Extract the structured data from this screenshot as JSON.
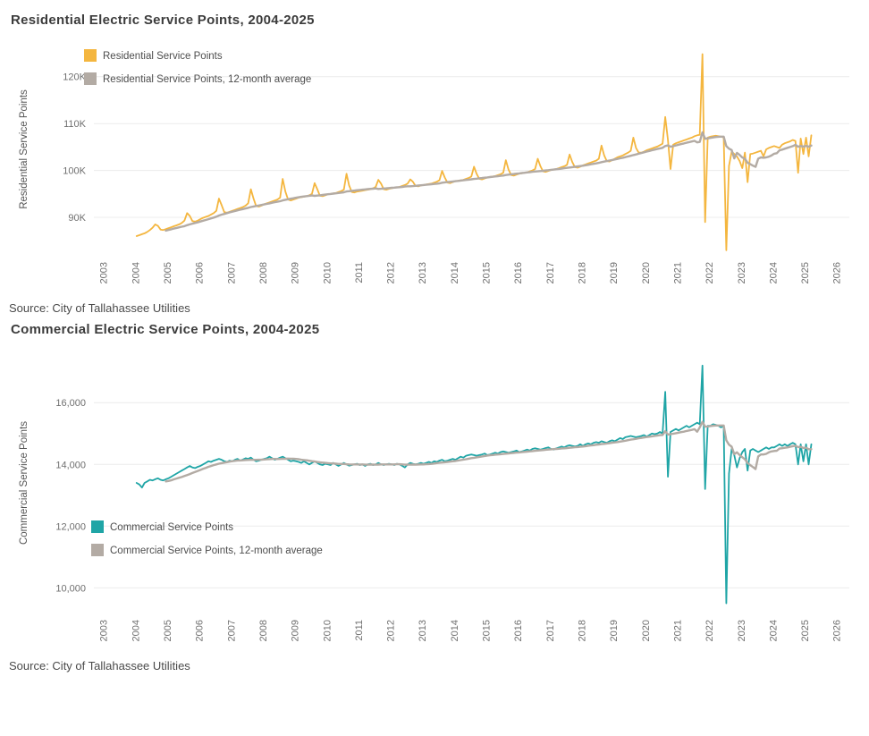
{
  "page": {
    "background": "#ffffff"
  },
  "chart_data": [
    {
      "type": "line",
      "title": "Residential Electric Service Points, 2004-2025",
      "source": "Source: City of Tallahassee Utilities",
      "ylabel": "Residential Service Points",
      "legend": [
        "Residential Service Points",
        "Residential Service Points, 12-month average"
      ],
      "legend_position": "top-left",
      "grid": "horizontal",
      "colors": {
        "series": "#F4B63F",
        "average": "#B3ABA4"
      },
      "xlim": [
        2002.7,
        2026.4
      ],
      "ylim": [
        82000,
        127000
      ],
      "x_ticks": [
        2003,
        2004,
        2005,
        2006,
        2007,
        2008,
        2009,
        2010,
        2011,
        2012,
        2013,
        2014,
        2015,
        2016,
        2017,
        2018,
        2019,
        2020,
        2021,
        2022,
        2023,
        2024,
        2025,
        2026
      ],
      "y_ticks": [
        {
          "value": 90000,
          "label": "90K"
        },
        {
          "value": 100000,
          "label": "100K"
        },
        {
          "value": 110000,
          "label": "110K"
        },
        {
          "value": 120000,
          "label": "120K"
        }
      ],
      "x_start_year": 2004,
      "frequency": "monthly",
      "series": [
        {
          "name": "Residential Service Points",
          "values": [
            86000,
            86200,
            86400,
            86600,
            86900,
            87300,
            87800,
            88500,
            88200,
            87400,
            87300,
            87500,
            87700,
            87900,
            88100,
            88300,
            88500,
            88800,
            89300,
            90900,
            90300,
            89200,
            89100,
            89300,
            89600,
            89900,
            90100,
            90300,
            90600,
            90900,
            91400,
            94000,
            92600,
            91100,
            91000,
            91200,
            91400,
            91600,
            91800,
            92000,
            92200,
            92500,
            93000,
            96000,
            94000,
            92400,
            92300,
            92500,
            92800,
            93000,
            93200,
            93400,
            93600,
            93800,
            94200,
            98200,
            95500,
            93800,
            93600,
            93800,
            94000,
            94200,
            94300,
            94400,
            94500,
            94700,
            95000,
            97300,
            96000,
            94600,
            94500,
            94700,
            94900,
            95000,
            95100,
            95200,
            95400,
            95600,
            95900,
            99300,
            96800,
            95400,
            95300,
            95500,
            95600,
            95700,
            95800,
            95900,
            96000,
            96200,
            96500,
            98000,
            97200,
            96000,
            95900,
            96100,
            96200,
            96300,
            96400,
            96500,
            96700,
            96900,
            97200,
            98100,
            97600,
            96700,
            96600,
            96800,
            96900,
            97000,
            97100,
            97200,
            97400,
            97600,
            97900,
            99900,
            98500,
            97400,
            97300,
            97500,
            97700,
            97800,
            97900,
            98000,
            98200,
            98400,
            98700,
            100800,
            99300,
            98200,
            98100,
            98300,
            98500,
            98600,
            98700,
            98800,
            99000,
            99200,
            99500,
            102200,
            100200,
            99000,
            98900,
            99100,
            99300,
            99400,
            99500,
            99600,
            99800,
            100000,
            100300,
            102500,
            100900,
            99800,
            99700,
            99900,
            100100,
            100200,
            100300,
            100500,
            100700,
            100900,
            101200,
            103400,
            101800,
            100700,
            100600,
            100800,
            101100,
            101300,
            101500,
            101700,
            101900,
            102100,
            102500,
            105300,
            103200,
            102000,
            101900,
            102200,
            102500,
            102800,
            103000,
            103200,
            103500,
            103800,
            104200,
            107000,
            104800,
            103800,
            103800,
            104000,
            104300,
            104500,
            104700,
            104900,
            105100,
            105400,
            105700,
            111400,
            106500,
            100300,
            105500,
            105800,
            106000,
            106200,
            106400,
            106600,
            106800,
            107000,
            107300,
            107500,
            107600,
            124800,
            89000,
            107000,
            107200,
            107300,
            107400,
            107300,
            107200,
            107000,
            83000,
            101000,
            104000,
            103500,
            103000,
            102000,
            100500,
            103800,
            97500,
            103500,
            103600,
            103800,
            104000,
            104200,
            103000,
            104500,
            104800,
            105000,
            105200,
            105000,
            104800,
            105500,
            105800,
            106000,
            106200,
            106500,
            106300,
            99500,
            106800,
            103500,
            107000,
            103000,
            107500
          ]
        },
        {
          "name": "Residential Service Points, 12-month average",
          "derivation": "12-month trailing average of series 0"
        }
      ]
    },
    {
      "type": "line",
      "title": "Commercial Electric Service Points, 2004-2025",
      "source": "Source: City of Tallahassee Utilities",
      "ylabel": "Commercial Service Points",
      "legend": [
        "Commercial Service Points",
        "Commercial Service Points, 12-month average"
      ],
      "legend_position": "middle-left",
      "grid": "horizontal",
      "colors": {
        "series": "#1FA5A6",
        "average": "#B3ABA4"
      },
      "xlim": [
        2002.7,
        2026.4
      ],
      "ylim": [
        9200,
        17600
      ],
      "x_ticks": [
        2003,
        2004,
        2005,
        2006,
        2007,
        2008,
        2009,
        2010,
        2011,
        2012,
        2013,
        2014,
        2015,
        2016,
        2017,
        2018,
        2019,
        2020,
        2021,
        2022,
        2023,
        2024,
        2025,
        2026
      ],
      "y_ticks": [
        {
          "value": 10000,
          "label": "10,000"
        },
        {
          "value": 12000,
          "label": "12,000"
        },
        {
          "value": 14000,
          "label": "14,000"
        },
        {
          "value": 16000,
          "label": "16,000"
        }
      ],
      "x_start_year": 2004,
      "frequency": "monthly",
      "series": [
        {
          "name": "Commercial Service Points",
          "values": [
            13400,
            13350,
            13250,
            13400,
            13450,
            13500,
            13480,
            13520,
            13550,
            13500,
            13480,
            13520,
            13550,
            13600,
            13650,
            13700,
            13750,
            13800,
            13850,
            13900,
            13950,
            13900,
            13880,
            13920,
            13950,
            14000,
            14050,
            14100,
            14080,
            14120,
            14150,
            14180,
            14150,
            14100,
            14080,
            14120,
            14100,
            14150,
            14180,
            14120,
            14160,
            14200,
            14180,
            14220,
            14150,
            14100,
            14120,
            14150,
            14180,
            14200,
            14250,
            14200,
            14150,
            14180,
            14220,
            14250,
            14200,
            14150,
            14100,
            14120,
            14100,
            14080,
            14050,
            14100,
            14050,
            14000,
            14050,
            14100,
            14050,
            14000,
            13980,
            14020,
            14000,
            13980,
            14050,
            14000,
            13950,
            14000,
            14050,
            14000,
            13960,
            13980,
            14000,
            14020,
            13980,
            14000,
            13950,
            14000,
            14020,
            13980,
            14000,
            14050,
            14000,
            13980,
            14000,
            14020,
            14000,
            13980,
            14020,
            14000,
            13950,
            13900,
            14000,
            14050,
            14020,
            14000,
            14020,
            14050,
            14020,
            14050,
            14080,
            14050,
            14100,
            14080,
            14120,
            14150,
            14100,
            14120,
            14150,
            14180,
            14150,
            14200,
            14250,
            14220,
            14280,
            14300,
            14320,
            14300,
            14280,
            14300,
            14320,
            14350,
            14300,
            14320,
            14350,
            14380,
            14350,
            14400,
            14420,
            14400,
            14380,
            14400,
            14420,
            14450,
            14400,
            14420,
            14450,
            14480,
            14450,
            14500,
            14520,
            14500,
            14480,
            14500,
            14530,
            14550,
            14500,
            14480,
            14520,
            14550,
            14580,
            14550,
            14600,
            14620,
            14600,
            14580,
            14600,
            14650,
            14600,
            14650,
            14680,
            14650,
            14700,
            14720,
            14700,
            14750,
            14720,
            14700,
            14750,
            14780,
            14750,
            14800,
            14850,
            14820,
            14880,
            14900,
            14920,
            14900,
            14880,
            14900,
            14920,
            14950,
            14900,
            14950,
            15000,
            14980,
            15000,
            15050,
            15000,
            16350,
            13600,
            15050,
            15100,
            15150,
            15100,
            15150,
            15200,
            15250,
            15200,
            15250,
            15300,
            15350,
            15300,
            17200,
            13200,
            15250,
            15250,
            15300,
            15280,
            15250,
            15200,
            15250,
            9500,
            13700,
            14500,
            14300,
            13900,
            14200,
            14400,
            14500,
            13800,
            14450,
            14500,
            14450,
            14400,
            14450,
            14500,
            14550,
            14500,
            14550,
            14550,
            14600,
            14650,
            14600,
            14650,
            14600,
            14650,
            14700,
            14650,
            14000,
            14650,
            14100,
            14650,
            14000,
            14650
          ]
        },
        {
          "name": "Commercial Service Points, 12-month average",
          "derivation": "12-month trailing average of series 0"
        }
      ]
    }
  ]
}
